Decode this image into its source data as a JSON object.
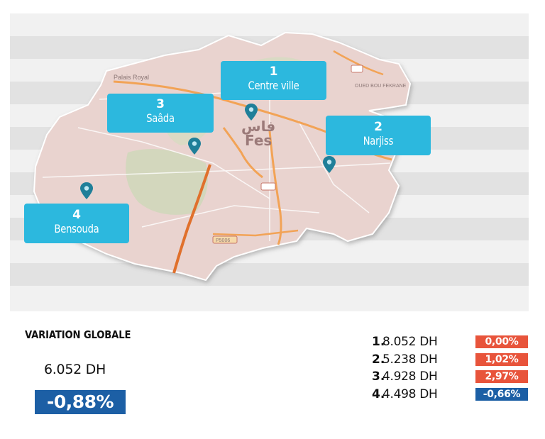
{
  "map": {
    "districts": [
      {
        "rank": "1",
        "name": "Centre ville"
      },
      {
        "rank": "2",
        "name": "Narjiss"
      },
      {
        "rank": "3",
        "name": "Saâda"
      },
      {
        "rank": "4",
        "name": "Bensouda"
      }
    ],
    "city_label_latin": "Fes",
    "city_label_arabic": "فاس",
    "place_labels": [
      "Palais Royal",
      "P5006",
      "OUED BOU FEKRANE"
    ],
    "colors": {
      "callout": "#2cb8de",
      "pin": "#1f7f99",
      "map_fill": "#e9d3cf",
      "road": "#f2a356",
      "highway": "#e0702c"
    }
  },
  "summary": {
    "title": "VARIATION GLOBALE",
    "price": "6.052 DH",
    "variation": "-0,88%",
    "variation_color": "#1c5fa5"
  },
  "ranking": [
    {
      "num": "1.",
      "price": "8.052 DH",
      "variation": "0,00%",
      "color": "#e8543b"
    },
    {
      "num": "2.",
      "price": "5.238 DH",
      "variation": "1,02%",
      "color": "#e8543b"
    },
    {
      "num": "3.",
      "price": "4.928 DH",
      "variation": "2,97%",
      "color": "#e8543b"
    },
    {
      "num": "4.",
      "price": "4.498 DH",
      "variation": "-0,66%",
      "color": "#1c5fa5"
    }
  ]
}
